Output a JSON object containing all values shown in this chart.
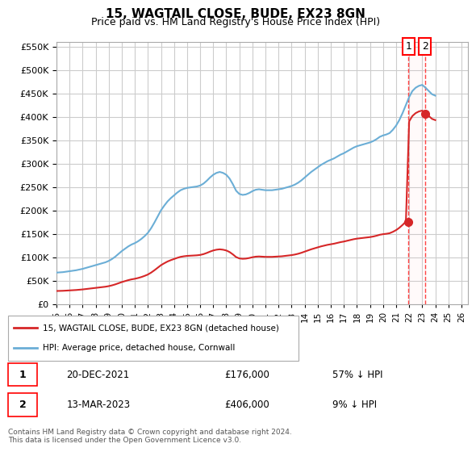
{
  "title": "15, WAGTAIL CLOSE, BUDE, EX23 8GN",
  "subtitle": "Price paid vs. HM Land Registry's House Price Index (HPI)",
  "ylabel": "",
  "legend_line1": "15, WAGTAIL CLOSE, BUDE, EX23 8GN (detached house)",
  "legend_line2": "HPI: Average price, detached house, Cornwall",
  "annotation1_label": "1",
  "annotation1_date": "20-DEC-2021",
  "annotation1_price": "£176,000",
  "annotation1_pct": "57% ↓ HPI",
  "annotation2_label": "2",
  "annotation2_date": "13-MAR-2023",
  "annotation2_price": "£406,000",
  "annotation2_pct": "9% ↓ HPI",
  "footnote": "Contains HM Land Registry data © Crown copyright and database right 2024.\nThis data is licensed under the Open Government Licence v3.0.",
  "hpi_color": "#6baed6",
  "price_color": "#d62728",
  "annotation_color": "#ff0000",
  "grid_color": "#cccccc",
  "background_color": "#ffffff",
  "ylim": [
    0,
    560000
  ],
  "xmin": 1995.0,
  "xmax": 2026.5,
  "hpi_years": [
    1995.0,
    1995.25,
    1995.5,
    1995.75,
    1996.0,
    1996.25,
    1996.5,
    1996.75,
    1997.0,
    1997.25,
    1997.5,
    1997.75,
    1998.0,
    1998.25,
    1998.5,
    1998.75,
    1999.0,
    1999.25,
    1999.5,
    1999.75,
    2000.0,
    2000.25,
    2000.5,
    2000.75,
    2001.0,
    2001.25,
    2001.5,
    2001.75,
    2002.0,
    2002.25,
    2002.5,
    2002.75,
    2003.0,
    2003.25,
    2003.5,
    2003.75,
    2004.0,
    2004.25,
    2004.5,
    2004.75,
    2005.0,
    2005.25,
    2005.5,
    2005.75,
    2006.0,
    2006.25,
    2006.5,
    2006.75,
    2007.0,
    2007.25,
    2007.5,
    2007.75,
    2008.0,
    2008.25,
    2008.5,
    2008.75,
    2009.0,
    2009.25,
    2009.5,
    2009.75,
    2010.0,
    2010.25,
    2010.5,
    2010.75,
    2011.0,
    2011.25,
    2011.5,
    2011.75,
    2012.0,
    2012.25,
    2012.5,
    2012.75,
    2013.0,
    2013.25,
    2013.5,
    2013.75,
    2014.0,
    2014.25,
    2014.5,
    2014.75,
    2015.0,
    2015.25,
    2015.5,
    2015.75,
    2016.0,
    2016.25,
    2016.5,
    2016.75,
    2017.0,
    2017.25,
    2017.5,
    2017.75,
    2018.0,
    2018.25,
    2018.5,
    2018.75,
    2019.0,
    2019.25,
    2019.5,
    2019.75,
    2020.0,
    2020.25,
    2020.5,
    2020.75,
    2021.0,
    2021.25,
    2021.5,
    2021.75,
    2022.0,
    2022.25,
    2022.5,
    2022.75,
    2023.0,
    2023.25,
    2023.5,
    2023.75,
    2024.0
  ],
  "hpi_values": [
    67000,
    67500,
    68000,
    69000,
    70000,
    71000,
    72000,
    73500,
    75000,
    77000,
    79000,
    81000,
    83000,
    85000,
    87000,
    89000,
    92000,
    96000,
    101000,
    107000,
    113000,
    118000,
    123000,
    127000,
    130000,
    134000,
    139000,
    145000,
    152000,
    162000,
    174000,
    187000,
    200000,
    210000,
    219000,
    226000,
    232000,
    238000,
    243000,
    246000,
    248000,
    249000,
    250000,
    251000,
    253000,
    257000,
    263000,
    270000,
    276000,
    280000,
    282000,
    280000,
    276000,
    268000,
    256000,
    242000,
    235000,
    233000,
    234000,
    237000,
    241000,
    244000,
    245000,
    244000,
    243000,
    243000,
    243000,
    244000,
    245000,
    246000,
    248000,
    250000,
    252000,
    255000,
    259000,
    264000,
    270000,
    276000,
    282000,
    287000,
    292000,
    297000,
    301000,
    305000,
    308000,
    311000,
    315000,
    319000,
    322000,
    326000,
    330000,
    334000,
    337000,
    339000,
    341000,
    343000,
    345000,
    348000,
    352000,
    357000,
    360000,
    362000,
    365000,
    372000,
    381000,
    393000,
    408000,
    425000,
    442000,
    455000,
    462000,
    466000,
    468000,
    462000,
    455000,
    448000,
    445000
  ],
  "sale1_year": 2021.96,
  "sale1_price": 176000,
  "sale2_year": 2023.2,
  "sale2_price": 406000,
  "vline_year1": 2021.96,
  "vline_year2": 2023.2
}
